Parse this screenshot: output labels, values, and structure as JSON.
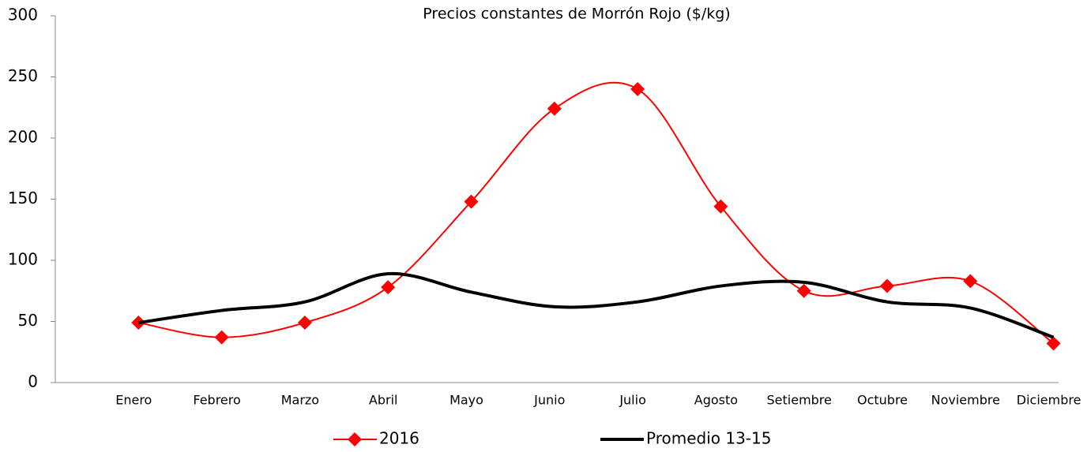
{
  "chart_data": {
    "type": "line",
    "title": "Precios constantes de Morrón Rojo ($/kg)",
    "categories": [
      "Enero",
      "Febrero",
      "Marzo",
      "Abril",
      "Mayo",
      "Junio",
      "Julio",
      "Agosto",
      "Setiembre",
      "Octubre",
      "Noviembre",
      "Diciembre"
    ],
    "series": [
      {
        "name": "2016",
        "color": "#ff0000",
        "marker": "diamond",
        "values": [
          49,
          37,
          49,
          78,
          148,
          224,
          240,
          144,
          75,
          79,
          83,
          32
        ]
      },
      {
        "name": "Promedio 13-15",
        "color": "#000000",
        "values": [
          49,
          59,
          66,
          89,
          74,
          62,
          66,
          79,
          82,
          66,
          61,
          37
        ]
      }
    ],
    "ylim": [
      0,
      300
    ],
    "yticks": [
      0,
      50,
      100,
      150,
      200,
      250,
      300
    ],
    "grid": false,
    "legend": "bottom"
  }
}
